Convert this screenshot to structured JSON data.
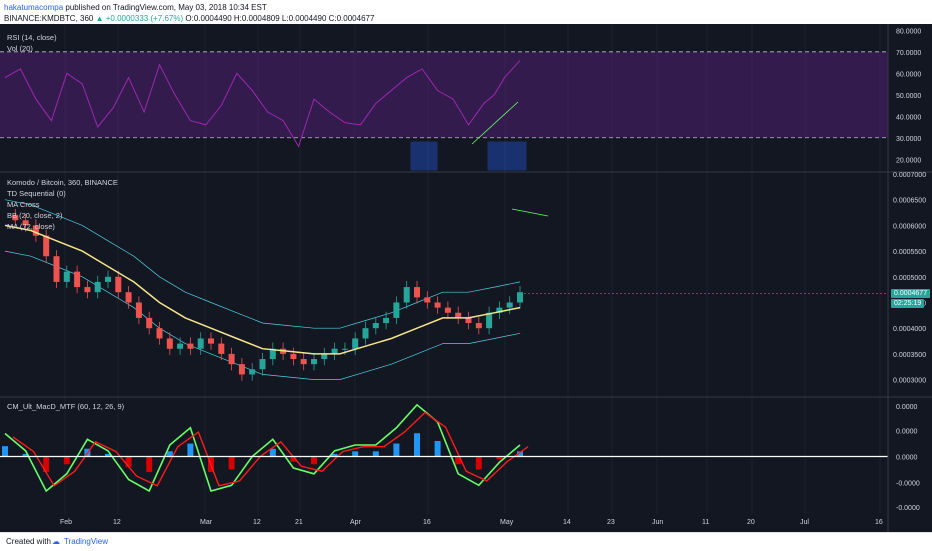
{
  "header": {
    "author": "hakatumacompa",
    "published_text": "published on TradingView.com, May 03, 2018 10:34 EST",
    "symbol_line_prefix": "BINANCE:KMDBTC, 360",
    "change": "▲ +0.0000333 (+7.67%)",
    "ohlc": "O:0.0004490 H:0.0004809 L:0.0004490 C:0.0004677"
  },
  "colors": {
    "background": "#131722",
    "rsi": "#9c27b0",
    "rsi_band": "#4a1f6b",
    "ma": "#f5e58a",
    "bb": "#4dd0e1",
    "up_candle": "#26a69a",
    "down_candle": "#ef5350",
    "macd_fast": "#66ff66",
    "macd_slow": "#ff1a1a",
    "hist_up": "#2196f3",
    "hist_down": "#d50000"
  },
  "chart_data": [
    {
      "type": "line",
      "title": "RSI (14, close)",
      "subtitle": "Vol (20)",
      "ylim": [
        15,
        82
      ],
      "y_ticks": [
        "80.0000",
        "70.0000",
        "60.0000",
        "50.0000",
        "40.0000",
        "30.0000",
        "20.0000"
      ],
      "levels": [
        70,
        30
      ],
      "series": [
        {
          "name": "RSI",
          "x": [
            0,
            3,
            6,
            9,
            12,
            15,
            18,
            21,
            24,
            27,
            30,
            33,
            36,
            39,
            42,
            45,
            48,
            51,
            54,
            57,
            60,
            63,
            66,
            69,
            72,
            75,
            78,
            81,
            84,
            87,
            90,
            93,
            95,
            97,
            100
          ],
          "values": [
            58,
            62,
            48,
            38,
            60,
            55,
            35,
            44,
            58,
            42,
            64,
            50,
            38,
            36,
            45,
            60,
            52,
            42,
            38,
            26,
            48,
            42,
            37,
            36,
            46,
            52,
            58,
            62,
            52,
            48,
            36,
            46,
            50,
            58,
            66
          ]
        }
      ]
    },
    {
      "type": "line",
      "title": "Komodo / Bitcoin, 360, BINANCE",
      "indicators": [
        "TD Sequential (0)",
        "MA Cross",
        "BB (20, close, 2)",
        "MA (72, close)"
      ],
      "ylim": [
        0.00027,
        0.0007
      ],
      "y_ticks": [
        "0.0007000",
        "0.0006500",
        "0.0006000",
        "0.0005500",
        "0.0005000",
        "0.0004500",
        "0.0004000",
        "0.0003500",
        "0.0003000"
      ],
      "last_price": "0.0004677",
      "countdown": "02:25:19",
      "series": [
        {
          "name": "Close",
          "x": [
            0,
            2,
            4,
            6,
            8,
            10,
            12,
            14,
            16,
            18,
            20,
            22,
            24,
            26,
            28,
            30,
            32,
            34,
            36,
            38,
            40,
            42,
            44,
            46,
            48,
            50,
            52,
            54,
            56,
            58,
            60,
            62,
            64,
            66,
            68,
            70,
            72,
            74,
            76,
            78,
            80,
            82,
            84,
            86,
            88,
            90,
            92,
            94,
            96,
            98,
            100
          ],
          "values": [
            0.00062,
            0.00061,
            0.0006,
            0.00058,
            0.00054,
            0.00049,
            0.00051,
            0.00048,
            0.00047,
            0.00049,
            0.0005,
            0.00047,
            0.00045,
            0.00042,
            0.0004,
            0.00038,
            0.00036,
            0.00037,
            0.00036,
            0.00038,
            0.00037,
            0.00035,
            0.00033,
            0.00031,
            0.00032,
            0.00034,
            0.00036,
            0.00035,
            0.00034,
            0.00033,
            0.00034,
            0.00035,
            0.00036,
            0.00036,
            0.00038,
            0.0004,
            0.00041,
            0.00042,
            0.00045,
            0.00048,
            0.00046,
            0.00045,
            0.00044,
            0.00043,
            0.00042,
            0.00041,
            0.0004,
            0.00043,
            0.00044,
            0.00045,
            0.00047
          ]
        },
        {
          "name": "MA",
          "x": [
            0,
            5,
            10,
            15,
            20,
            25,
            30,
            35,
            40,
            45,
            50,
            55,
            60,
            65,
            70,
            75,
            80,
            85,
            90,
            95,
            100
          ],
          "values": [
            0.0006,
            0.00059,
            0.00057,
            0.00055,
            0.00052,
            0.00049,
            0.00045,
            0.00042,
            0.0004,
            0.00038,
            0.00036,
            0.000355,
            0.00035,
            0.00035,
            0.000365,
            0.00038,
            0.0004,
            0.00042,
            0.00042,
            0.00043,
            0.00044
          ]
        }
      ]
    },
    {
      "type": "bar",
      "title": "CM_Ult_MacD_MTF (60, 12, 26, 9)",
      "ylim": [
        -1,
        1
      ],
      "y_ticks": [
        "0.0000",
        "0.0000",
        "0.0000",
        "-0.0000",
        "-0.0000"
      ],
      "series": [
        {
          "name": "MACD",
          "x": [
            0,
            4,
            8,
            12,
            16,
            20,
            24,
            28,
            32,
            36,
            40,
            44,
            48,
            52,
            56,
            60,
            64,
            68,
            72,
            76,
            80,
            84,
            88,
            92,
            96,
            100
          ],
          "values": [
            0.4,
            0.1,
            -0.6,
            -0.3,
            0.3,
            0.1,
            -0.4,
            -0.6,
            0.2,
            0.5,
            -0.6,
            -0.5,
            0.0,
            0.3,
            -0.2,
            -0.3,
            0.1,
            0.2,
            0.2,
            0.5,
            0.9,
            0.6,
            -0.3,
            -0.5,
            -0.1,
            0.2
          ]
        }
      ]
    }
  ],
  "x_axis": {
    "labels": [
      "Feb",
      "12",
      "Mar",
      "12",
      "21",
      "Apr",
      "16",
      "May",
      "14",
      "23",
      "Jun",
      "11",
      "20",
      "Jul",
      "16"
    ]
  },
  "footer": {
    "created_with": "Created with",
    "brand": "TradingView"
  }
}
